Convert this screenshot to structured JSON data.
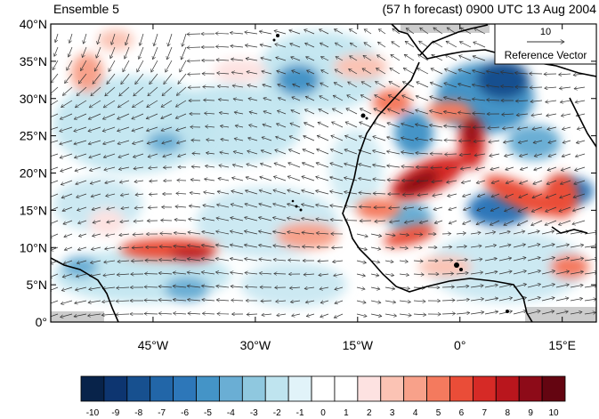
{
  "header": {
    "ensemble_label": "Ensemble 5",
    "forecast_label": "(57 h forecast) 0900 UTC 13 Aug 2004"
  },
  "map": {
    "lat_ticks": [
      "40°N",
      "35°N",
      "30°N",
      "25°N",
      "20°N",
      "15°N",
      "10°N",
      "5°N",
      "0°"
    ],
    "lon_ticks": [
      "45°W",
      "30°W",
      "15°W",
      "0°",
      "15°E"
    ],
    "reference_vector": {
      "value": "10",
      "label": "Reference Vector"
    },
    "vector_color": "#333333",
    "land_outline_color": "#000000",
    "missing_color": "#cccccc"
  },
  "colorbar": {
    "labels": [
      "-10",
      "-9",
      "-8",
      "-7",
      "-6",
      "-5",
      "-4",
      "-3",
      "-2",
      "-1",
      "0",
      "1",
      "2",
      "3",
      "4",
      "5",
      "6",
      "7",
      "8",
      "9",
      "10"
    ],
    "colors": [
      "#08234a",
      "#0d3570",
      "#17508f",
      "#2266a8",
      "#2d77b9",
      "#4494c7",
      "#6aaed4",
      "#8fc8df",
      "#bfe4ef",
      "#e1f3f9",
      "#ffffff",
      "#ffffff",
      "#fde2e1",
      "#fbc3b4",
      "#f8a18a",
      "#f47a5e",
      "#ea4d38",
      "#d62a26",
      "#b9161d",
      "#8d0b18",
      "#640511"
    ]
  }
}
